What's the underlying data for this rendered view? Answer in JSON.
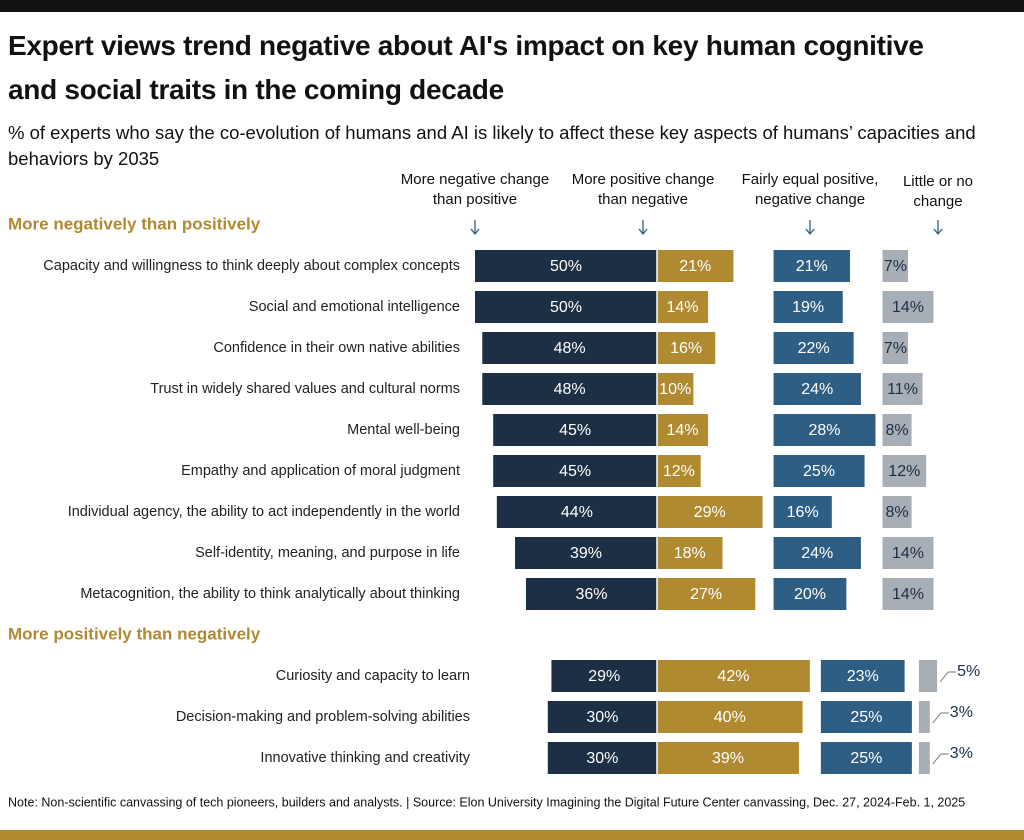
{
  "chart_data": {
    "type": "diverging-bar",
    "title": "Expert views trend negative about AI's impact on key human cognitive and social traits in the coming decade",
    "subtitle": "% of experts who say the co-evolution of humans and AI is likely to affect these key aspects of humans’ capacities and behaviors by 2035",
    "note": "Note: Non-scientific canvassing of tech pioneers, builders and analysts. | Source: Elon University Imagining the Digital Future Center canvassing,  Dec. 27, 2024-Feb. 1, 2025",
    "groups": [
      {
        "label": "More negatively than positively",
        "categories": [
          "Capacity and willingness to think deeply about complex concepts",
          "Social and emotional intelligence",
          "Confidence in their own native abilities",
          "Trust in widely shared values and cultural norms",
          "Mental well-being",
          "Empathy and application of moral judgment",
          "Individual agency, the ability to act independently in the world",
          "Self-identity, meaning, and purpose in life",
          "Metacognition, the ability to think analytically about thinking"
        ]
      },
      {
        "label": "More positively than negatively",
        "categories": [
          "Curiosity and capacity to learn",
          "Decision-making and problem-solving abilities",
          "Innovative thinking and creativity"
        ]
      }
    ],
    "series": [
      {
        "name": "More negative change than positive",
        "color": "#1c2f45",
        "values": [
          50,
          50,
          48,
          48,
          45,
          45,
          44,
          39,
          36,
          29,
          30,
          30
        ],
        "value_labels": [
          "50%",
          "50%",
          "48%",
          "48%",
          "45%",
          "45%",
          "44%",
          "39%",
          "36%",
          "29%",
          "30%",
          "30%"
        ]
      },
      {
        "name": "More positive change than negative",
        "color": "#b08a30",
        "values": [
          21,
          14,
          16,
          10,
          14,
          12,
          29,
          18,
          27,
          42,
          40,
          39
        ],
        "value_labels": [
          "21%",
          "14%",
          "16%",
          "10%",
          "14%",
          "12%",
          "29%",
          "18%",
          "27%",
          "42%",
          "40%",
          "39%"
        ]
      },
      {
        "name": "Fairly equal positive, negative change",
        "color": "#2f5e85",
        "values": [
          21,
          19,
          22,
          24,
          28,
          25,
          16,
          24,
          20,
          23,
          25,
          25
        ],
        "value_labels": [
          "21%",
          "19%",
          "22%",
          "24%",
          "28%",
          "25%",
          "16%",
          "24%",
          "20%",
          "23%",
          "25%",
          "25%"
        ]
      },
      {
        "name": "Little or no change",
        "color": "#a8aeb6",
        "values": [
          7,
          14,
          7,
          11,
          8,
          12,
          8,
          14,
          14,
          5,
          3,
          3
        ],
        "value_labels": [
          "7%",
          "14%",
          "7%",
          "11%",
          "8%",
          "12%",
          "8%",
          "14%",
          "14%",
          "5%",
          "3%",
          "3%"
        ]
      }
    ]
  }
}
